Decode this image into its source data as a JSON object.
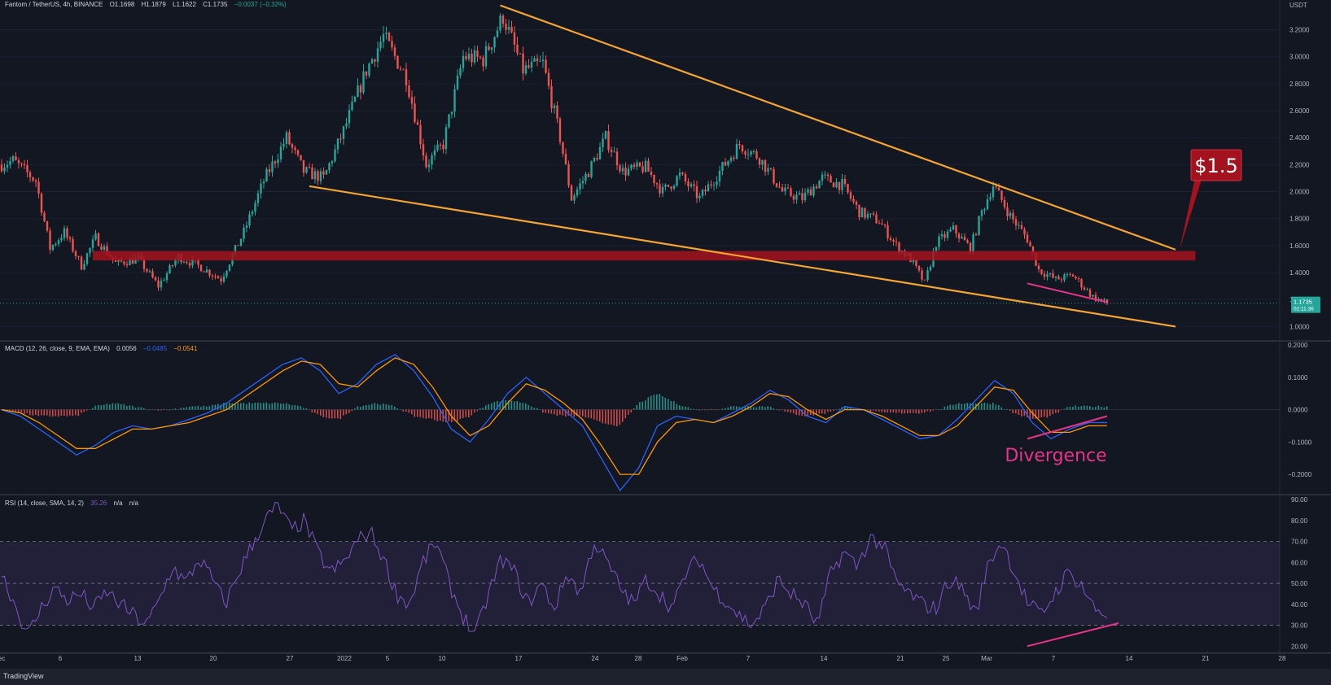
{
  "header": {
    "symbol": "Fantom / TetherUS, 4h, BINANCE",
    "o": "O1.1698",
    "h": "H1.1879",
    "l": "L1.1622",
    "c": "C1.1735",
    "chg": "−0.0037 (−0.32%)"
  },
  "macd_header": {
    "label": "MACD (12, 26, close, 9, EMA, EMA)",
    "v1": "0.0056",
    "v2": "−0.0485",
    "v3": "−0.0541"
  },
  "rsi_header": {
    "label": "RSI (14, close, SMA, 14, 2)",
    "v1": "35.26",
    "v2": "n/a",
    "v3": "n/a"
  },
  "brand": "TradingView",
  "colors": {
    "background": "#131722",
    "up": "#26a69a",
    "down": "#ef5350",
    "wedge": "#f7a531",
    "zone": "#a3131f",
    "divergence": "#e8348a",
    "macd": "#2962ff",
    "signal": "#ff9800",
    "rsi": "#7e57c2"
  },
  "chart_data": [
    {
      "type": "candlestick",
      "title": "Fantom / TetherUS, 4h, BINANCE",
      "yunit": "USDT",
      "ylim": [
        0.9,
        3.42
      ],
      "yticks": [
        "1.0000",
        "1.2000",
        "1.4000",
        "1.6000",
        "1.8000",
        "2.0000",
        "2.2000",
        "2.4000",
        "2.6000",
        "2.8000",
        "3.0000",
        "3.2000"
      ],
      "xticks": [
        "ec",
        "6",
        "13",
        "20",
        "27",
        "2022",
        "5",
        "10",
        "17",
        "24",
        "28",
        "Feb",
        "7",
        "14",
        "21",
        "25",
        "Mar",
        "7",
        "14",
        "21",
        "28"
      ],
      "last_price": "1.1735",
      "countdown": "02:11:36",
      "price_path": [
        {
          "bar": 0,
          "price": 2.2
        },
        {
          "bar": 4,
          "price": 2.23
        },
        {
          "bar": 12,
          "price": 2.08
        },
        {
          "bar": 17,
          "price": 1.58
        },
        {
          "bar": 22,
          "price": 1.7
        },
        {
          "bar": 28,
          "price": 1.45
        },
        {
          "bar": 33,
          "price": 1.66
        },
        {
          "bar": 40,
          "price": 1.47
        },
        {
          "bar": 48,
          "price": 1.5
        },
        {
          "bar": 55,
          "price": 1.3
        },
        {
          "bar": 62,
          "price": 1.52
        },
        {
          "bar": 70,
          "price": 1.44
        },
        {
          "bar": 77,
          "price": 1.35
        },
        {
          "bar": 85,
          "price": 1.7
        },
        {
          "bar": 92,
          "price": 2.08
        },
        {
          "bar": 100,
          "price": 2.4
        },
        {
          "bar": 106,
          "price": 2.15
        },
        {
          "bar": 113,
          "price": 2.1
        },
        {
          "bar": 120,
          "price": 2.45
        },
        {
          "bar": 128,
          "price": 2.9
        },
        {
          "bar": 134,
          "price": 3.15
        },
        {
          "bar": 142,
          "price": 2.85
        },
        {
          "bar": 149,
          "price": 2.2
        },
        {
          "bar": 155,
          "price": 2.35
        },
        {
          "bar": 162,
          "price": 3.0
        },
        {
          "bar": 169,
          "price": 2.98
        },
        {
          "bar": 176,
          "price": 3.3
        },
        {
          "bar": 183,
          "price": 2.9
        },
        {
          "bar": 190,
          "price": 2.95
        },
        {
          "bar": 196,
          "price": 2.4
        },
        {
          "bar": 200,
          "price": 1.95
        },
        {
          "bar": 206,
          "price": 2.15
        },
        {
          "bar": 212,
          "price": 2.4
        },
        {
          "bar": 218,
          "price": 2.15
        },
        {
          "bar": 226,
          "price": 2.18
        },
        {
          "bar": 232,
          "price": 2.0
        },
        {
          "bar": 238,
          "price": 2.12
        },
        {
          "bar": 245,
          "price": 1.95
        },
        {
          "bar": 252,
          "price": 2.15
        },
        {
          "bar": 259,
          "price": 2.35
        },
        {
          "bar": 266,
          "price": 2.25
        },
        {
          "bar": 274,
          "price": 2.0
        },
        {
          "bar": 281,
          "price": 1.95
        },
        {
          "bar": 288,
          "price": 2.1
        },
        {
          "bar": 295,
          "price": 2.05
        },
        {
          "bar": 301,
          "price": 1.85
        },
        {
          "bar": 308,
          "price": 1.78
        },
        {
          "bar": 314,
          "price": 1.6
        },
        {
          "bar": 319,
          "price": 1.5
        },
        {
          "bar": 324,
          "price": 1.32
        },
        {
          "bar": 328,
          "price": 1.62
        },
        {
          "bar": 334,
          "price": 1.72
        },
        {
          "bar": 340,
          "price": 1.58
        },
        {
          "bar": 344,
          "price": 1.85
        },
        {
          "bar": 348,
          "price": 2.05
        },
        {
          "bar": 354,
          "price": 1.82
        },
        {
          "bar": 360,
          "price": 1.65
        },
        {
          "bar": 364,
          "price": 1.42
        },
        {
          "bar": 370,
          "price": 1.35
        },
        {
          "bar": 376,
          "price": 1.38
        },
        {
          "bar": 383,
          "price": 1.22
        },
        {
          "bar": 388,
          "price": 1.17
        }
      ],
      "wedge": {
        "upper": [
          {
            "bar": 175,
            "price": 3.38
          },
          {
            "bar": 412,
            "price": 1.57
          }
        ],
        "lower": [
          {
            "bar": 108,
            "price": 2.04
          },
          {
            "bar": 412,
            "price": 1.0
          }
        ]
      },
      "resistance_zone": {
        "low": 1.49,
        "high": 1.56,
        "from_bar": 32,
        "to_bar": 419
      },
      "divergence_line": [
        {
          "bar": 360,
          "price": 1.32
        },
        {
          "bar": 388,
          "price": 1.18
        }
      ],
      "callout": {
        "text": "$1.5",
        "anchor_bar": 414,
        "anchor_price": 1.57
      }
    },
    {
      "type": "line",
      "title": "MACD (12, 26, close, 9, EMA, EMA)",
      "ylim": [
        -0.26,
        0.21
      ],
      "yticks": [
        "0.2000",
        "0.1000",
        "0.0000",
        "−0.1000",
        "−0.2000"
      ],
      "series": [
        {
          "name": "MACD",
          "values": [
            0.0,
            -0.02,
            -0.06,
            -0.1,
            -0.14,
            -0.11,
            -0.07,
            -0.05,
            -0.06,
            -0.05,
            -0.03,
            -0.01,
            0.02,
            0.06,
            0.1,
            0.14,
            0.16,
            0.12,
            0.05,
            0.08,
            0.14,
            0.17,
            0.12,
            0.04,
            -0.06,
            -0.1,
            -0.03,
            0.05,
            0.1,
            0.05,
            0.0,
            -0.05,
            -0.15,
            -0.25,
            -0.18,
            -0.05,
            -0.02,
            -0.03,
            -0.04,
            -0.01,
            0.02,
            0.06,
            0.03,
            -0.02,
            -0.04,
            0.01,
            0.0,
            -0.03,
            -0.06,
            -0.09,
            -0.08,
            -0.03,
            0.03,
            0.09,
            0.05,
            -0.04,
            -0.09,
            -0.06,
            -0.04,
            -0.04
          ]
        },
        {
          "name": "Signal",
          "values": [
            0.0,
            -0.01,
            -0.04,
            -0.08,
            -0.12,
            -0.12,
            -0.09,
            -0.06,
            -0.06,
            -0.05,
            -0.04,
            -0.02,
            0.0,
            0.04,
            0.08,
            0.12,
            0.15,
            0.14,
            0.08,
            0.07,
            0.12,
            0.16,
            0.14,
            0.07,
            -0.02,
            -0.08,
            -0.05,
            0.02,
            0.08,
            0.06,
            0.02,
            -0.03,
            -0.11,
            -0.2,
            -0.2,
            -0.1,
            -0.04,
            -0.03,
            -0.04,
            -0.02,
            0.01,
            0.05,
            0.04,
            0.0,
            -0.03,
            0.0,
            0.0,
            -0.02,
            -0.05,
            -0.08,
            -0.08,
            -0.05,
            0.01,
            0.07,
            0.06,
            -0.01,
            -0.07,
            -0.07,
            -0.05,
            -0.05
          ]
        }
      ],
      "histogram": [
        0.0,
        -0.01,
        -0.02,
        -0.02,
        -0.02,
        0.01,
        0.02,
        0.01,
        0.0,
        0.0,
        0.01,
        0.01,
        0.02,
        0.02,
        0.02,
        0.02,
        0.01,
        -0.02,
        -0.03,
        0.01,
        0.02,
        0.01,
        -0.02,
        -0.03,
        -0.04,
        -0.02,
        0.02,
        0.03,
        0.02,
        -0.01,
        -0.02,
        -0.02,
        -0.04,
        -0.05,
        0.02,
        0.05,
        0.02,
        0.0,
        0.0,
        0.01,
        0.01,
        0.01,
        -0.01,
        -0.02,
        -0.01,
        0.01,
        0.0,
        -0.01,
        -0.01,
        -0.01,
        0.0,
        0.02,
        0.02,
        0.02,
        -0.01,
        -0.03,
        -0.02,
        0.01,
        0.01,
        0.01
      ],
      "divergence_line": [
        {
          "bar": 360,
          "value": -0.09
        },
        {
          "bar": 388,
          "value": -0.02
        }
      ],
      "annotation": "Divergence"
    },
    {
      "type": "line",
      "title": "RSI (14, close, SMA, 14, 2)",
      "ylim": [
        17,
        92
      ],
      "yticks": [
        "90.00",
        "80.00",
        "70.00",
        "60.00",
        "50.00",
        "40.00",
        "30.00",
        "20.00"
      ],
      "bands": [
        30,
        50,
        70
      ],
      "series": [
        {
          "name": "RSI",
          "values": [
            55,
            40,
            25,
            38,
            48,
            42,
            45,
            38,
            46,
            40,
            35,
            30,
            42,
            58,
            50,
            62,
            52,
            40,
            55,
            68,
            80,
            87,
            75,
            80,
            65,
            55,
            60,
            70,
            75,
            62,
            45,
            40,
            60,
            70,
            50,
            35,
            25,
            45,
            62,
            55,
            40,
            50,
            38,
            55,
            45,
            70,
            60,
            48,
            40,
            52,
            45,
            38,
            55,
            62,
            48,
            42,
            35,
            30,
            38,
            52,
            45,
            40,
            30,
            55,
            65,
            58,
            72,
            68,
            50,
            45,
            40,
            38,
            52,
            48,
            35,
            60,
            70,
            55,
            40,
            35,
            45,
            55,
            50,
            38,
            35
          ]
        }
      ],
      "divergence_line": [
        {
          "bar": 360,
          "value": 20
        },
        {
          "bar": 392,
          "value": 31
        }
      ]
    }
  ]
}
